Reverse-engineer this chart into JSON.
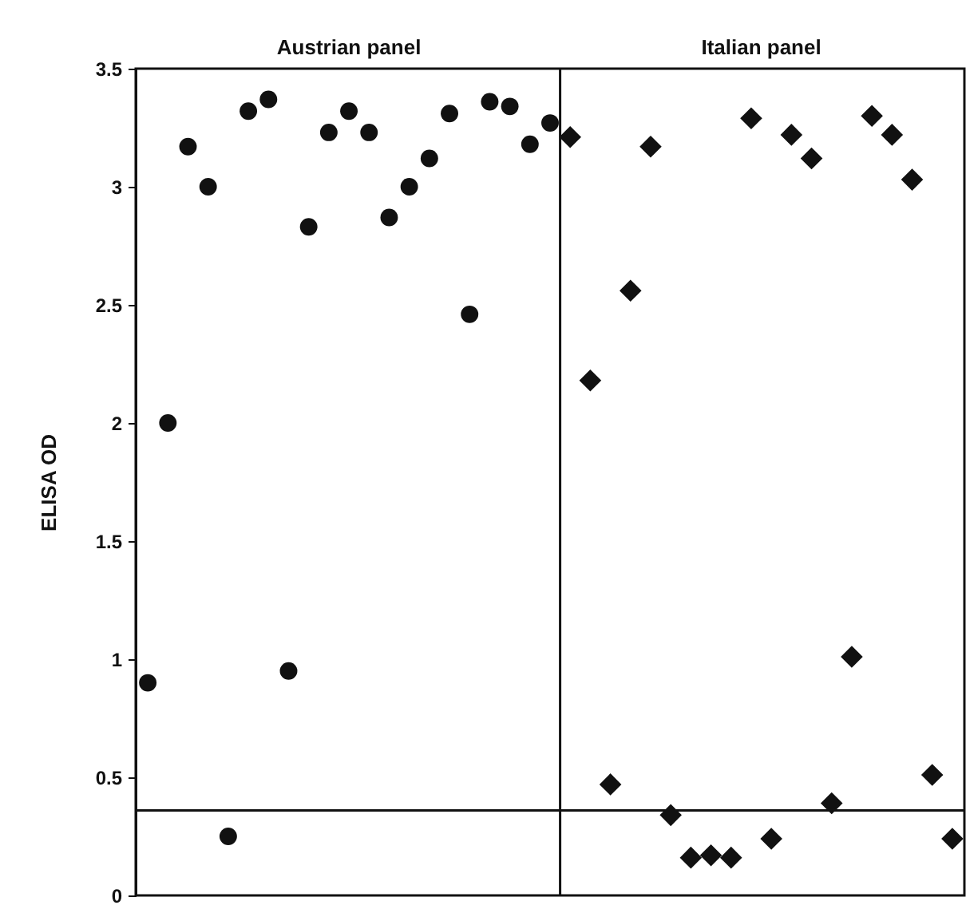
{
  "chart_data": {
    "type": "scatter",
    "ylabel": "ELISA OD",
    "categories": [
      null,
      null,
      null,
      null,
      null,
      null,
      null,
      null,
      null,
      null,
      null,
      null,
      null,
      null,
      null,
      null,
      null,
      null,
      null,
      null,
      null,
      null,
      null,
      null,
      null,
      null,
      null,
      null,
      null,
      null,
      null,
      null,
      null,
      null,
      null,
      null,
      null,
      null,
      null,
      null,
      null
    ],
    "series": [
      {
        "name": "Austrian panel",
        "color": "#111111",
        "marker": "circle",
        "values": [
          0.9,
          2.0,
          3.17,
          3.0,
          0.25,
          3.32,
          3.37,
          0.95,
          2.83,
          3.23,
          3.32,
          3.23,
          2.87,
          3.0,
          3.12,
          3.31,
          2.46,
          3.36,
          3.34,
          3.18,
          3.27,
          null,
          null,
          null,
          null,
          null,
          null,
          null,
          null,
          null,
          null,
          null,
          null,
          null,
          null,
          null,
          null,
          null,
          null,
          null,
          null
        ]
      },
      {
        "name": "Italian panel",
        "color": "#111111",
        "marker": "diamond",
        "values": [
          null,
          null,
          null,
          null,
          null,
          null,
          null,
          null,
          null,
          null,
          null,
          null,
          null,
          null,
          null,
          null,
          null,
          null,
          null,
          null,
          null,
          3.21,
          2.18,
          0.47,
          2.56,
          3.17,
          0.34,
          0.16,
          0.17,
          0.16,
          3.29,
          0.24,
          3.22,
          3.12,
          0.39,
          1.01,
          3.3,
          3.22,
          3.03,
          0.51,
          0.24
        ]
      }
    ],
    "ylim": [
      0,
      3.5
    ],
    "yticks": [
      0,
      0.5,
      1,
      1.5,
      2,
      2.5,
      3,
      3.5
    ],
    "tick_labels": "y",
    "ref_lines": [
      {
        "axis": "y",
        "value": 0.36,
        "color": "#111111"
      }
    ]
  }
}
